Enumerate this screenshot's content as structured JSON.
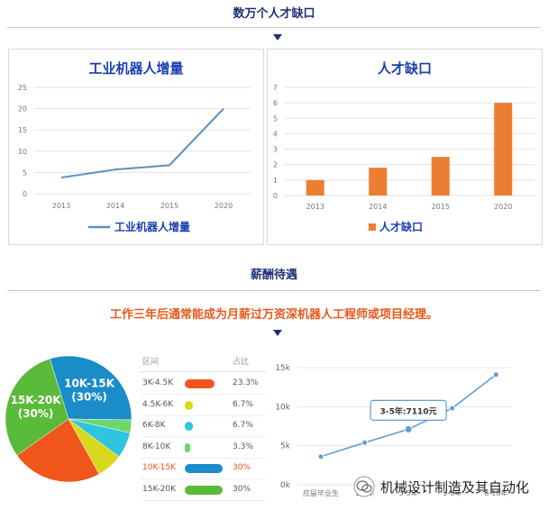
{
  "section1_title": "数万个人才缺口",
  "section2_title": "薪酬待遇",
  "section2_subtitle": "工作三年后通常能成为月薪过万资深机器人工程师或项目经理。",
  "chart_data": [
    {
      "type": "line",
      "title": "工业机器人增量",
      "categories": [
        "2013",
        "2014",
        "2015",
        "2020"
      ],
      "series": [
        {
          "name": "工业机器人增量",
          "values": [
            3.8,
            5.7,
            6.7,
            20
          ]
        }
      ],
      "ylim": [
        0,
        25
      ],
      "yticks": [
        "0",
        "5",
        "10",
        "15",
        "20",
        "25"
      ],
      "color": "#5b8fc2",
      "legend": "bottom"
    },
    {
      "type": "bar",
      "title": "人才缺口",
      "categories": [
        "2013",
        "2014",
        "2015",
        "2020"
      ],
      "series": [
        {
          "name": "人才缺口",
          "values": [
            1.0,
            1.8,
            2.5,
            6.0
          ]
        }
      ],
      "ylim": [
        0,
        7
      ],
      "yticks": [
        "0",
        "1",
        "2",
        "3",
        "4",
        "5",
        "6",
        "7"
      ],
      "color": "#ed7d31",
      "legend": "bottom"
    },
    {
      "type": "pie",
      "labels": [
        "3K-4.5K",
        "4.5K-6K",
        "6K-8K",
        "8K-10K",
        "10K-15K",
        "15K-20K"
      ],
      "values": [
        23.3,
        6.7,
        6.7,
        3.3,
        30,
        30
      ],
      "colors": [
        "#f0561c",
        "#d8d81c",
        "#2fc4e0",
        "#6bd66b",
        "#1a8cc8",
        "#5aba3a"
      ],
      "slice_labels": [
        {
          "index": 4,
          "text": "10K-15K\n(30%)"
        },
        {
          "index": 5,
          "text": "15K-20K\n(30%)"
        }
      ]
    },
    {
      "type": "table",
      "headers": [
        "区间",
        "占比"
      ],
      "rows": [
        {
          "label": "3K-4.5K",
          "pct": "23.3%",
          "value": 23.3
        },
        {
          "label": "4.5K-6K",
          "pct": "6.7%",
          "value": 6.7
        },
        {
          "label": "6K-8K",
          "pct": "6.7%",
          "value": 6.7
        },
        {
          "label": "8K-10K",
          "pct": "3.3%",
          "value": 3.3
        },
        {
          "label": "10K-15K",
          "pct": "30%",
          "value": 30,
          "highlight": true
        },
        {
          "label": "15K-20K",
          "pct": "30%",
          "value": 30
        }
      ]
    },
    {
      "type": "line",
      "categories": [
        "应届毕业生",
        "1-3年",
        "3-5年",
        "5-8年",
        "8-10年"
      ],
      "series": [
        {
          "name": "",
          "values": [
            3600,
            5400,
            7110,
            9800,
            14100
          ]
        }
      ],
      "ylim": [
        0,
        15000
      ],
      "yticks": [
        "0k",
        "5k",
        "10k",
        "15k"
      ],
      "tooltip": "3-5年:7110元",
      "tooltip_index": 2,
      "color": "#5f9ed6"
    }
  ],
  "watermark": "机械设计制造及其自动化"
}
